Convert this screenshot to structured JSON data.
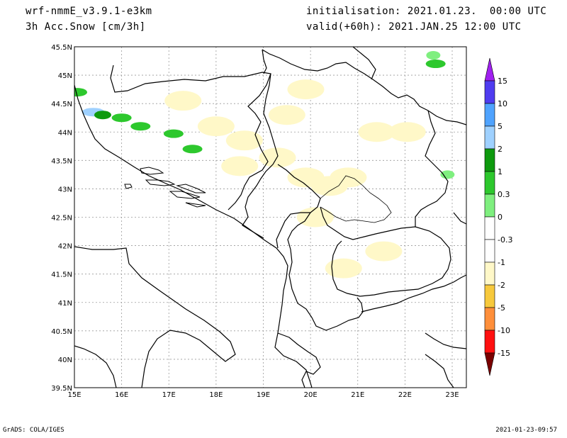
{
  "header": {
    "model": "wrf-nmmE_v3.9.1-e3km",
    "field": "3h Acc.Snow [cm/3h]",
    "initialisation": "initialisation: 2021.01.23.  00:00 UTC",
    "valid": "valid(+60h): 2021.JAN.25 12:00 UTC"
  },
  "footer": {
    "credit": "GrADS: COLA/IGES",
    "timestamp": "2021-01-23-09:57"
  },
  "map": {
    "lat_labels": [
      "45.5N",
      "45N",
      "44.5N",
      "44N",
      "43.5N",
      "43N",
      "42.5N",
      "42N",
      "41.5N",
      "41N",
      "40.5N",
      "40N",
      "39.5N"
    ],
    "lon_labels": [
      "15E",
      "16E",
      "17E",
      "18E",
      "19E",
      "20E",
      "21E",
      "22E",
      "23E"
    ],
    "lat_range": [
      39.5,
      45.5
    ],
    "lon_range": [
      15.0,
      23.3
    ],
    "grid": true,
    "snow_patches": [
      {
        "lon": 15.06,
        "lat": 44.7,
        "level": "1"
      },
      {
        "lon": 15.4,
        "lat": 44.35,
        "level": "5"
      },
      {
        "lon": 15.6,
        "lat": 44.3,
        "level": "2"
      },
      {
        "lon": 16.0,
        "lat": 44.25,
        "level": "1"
      },
      {
        "lon": 16.4,
        "lat": 44.1,
        "level": "1"
      },
      {
        "lon": 17.1,
        "lat": 43.97,
        "level": "1"
      },
      {
        "lon": 17.5,
        "lat": 43.7,
        "level": "1"
      },
      {
        "lon": 22.65,
        "lat": 45.2,
        "level": "1"
      },
      {
        "lon": 22.6,
        "lat": 45.35,
        "level": "0.3"
      },
      {
        "lon": 22.9,
        "lat": 43.25,
        "level": "0.3"
      },
      {
        "lon": 17.3,
        "lat": 44.55,
        "level": "-0.3"
      },
      {
        "lon": 18.0,
        "lat": 44.1,
        "level": "-0.3"
      },
      {
        "lon": 18.6,
        "lat": 43.85,
        "level": "-0.3"
      },
      {
        "lon": 19.3,
        "lat": 43.55,
        "level": "-0.3"
      },
      {
        "lon": 19.9,
        "lat": 43.2,
        "level": "-0.3"
      },
      {
        "lon": 20.4,
        "lat": 43.05,
        "level": "-0.3"
      },
      {
        "lon": 20.8,
        "lat": 43.2,
        "level": "-0.3"
      },
      {
        "lon": 19.5,
        "lat": 44.3,
        "level": "-0.3"
      },
      {
        "lon": 21.4,
        "lat": 44.0,
        "level": "-0.3"
      },
      {
        "lon": 22.05,
        "lat": 44.0,
        "level": "-0.3"
      },
      {
        "lon": 18.5,
        "lat": 43.4,
        "level": "-0.3"
      },
      {
        "lon": 20.1,
        "lat": 42.5,
        "level": "-0.3"
      },
      {
        "lon": 20.7,
        "lat": 41.6,
        "level": "-0.3"
      },
      {
        "lon": 21.55,
        "lat": 41.9,
        "level": "-0.3"
      },
      {
        "lon": 19.9,
        "lat": 44.75,
        "level": "-0.3"
      }
    ]
  },
  "colorbar": {
    "levels": [
      {
        "label": "15",
        "color": "#4f3cf0"
      },
      {
        "label": "10",
        "color": "#4fa3ff"
      },
      {
        "label": "5",
        "color": "#9fd1ff"
      },
      {
        "label": "2",
        "color": "#0e9a0e"
      },
      {
        "label": "1",
        "color": "#2dc82d"
      },
      {
        "label": "0.3",
        "color": "#7fef7f"
      },
      {
        "label": "0",
        "color": "#ffffff"
      },
      {
        "label": "-0.3",
        "color": "#ffffff"
      },
      {
        "label": "-1",
        "color": "#fff8c8"
      },
      {
        "label": "-2",
        "color": "#f7c93c"
      },
      {
        "label": "-5",
        "color": "#ff8f3a"
      },
      {
        "label": "-10",
        "color": "#ff1010"
      },
      {
        "label": "-15",
        "color": "#b00000"
      }
    ],
    "top_arrow_color": "#a020f0",
    "bottom_arrow_color": "#7a0000"
  }
}
